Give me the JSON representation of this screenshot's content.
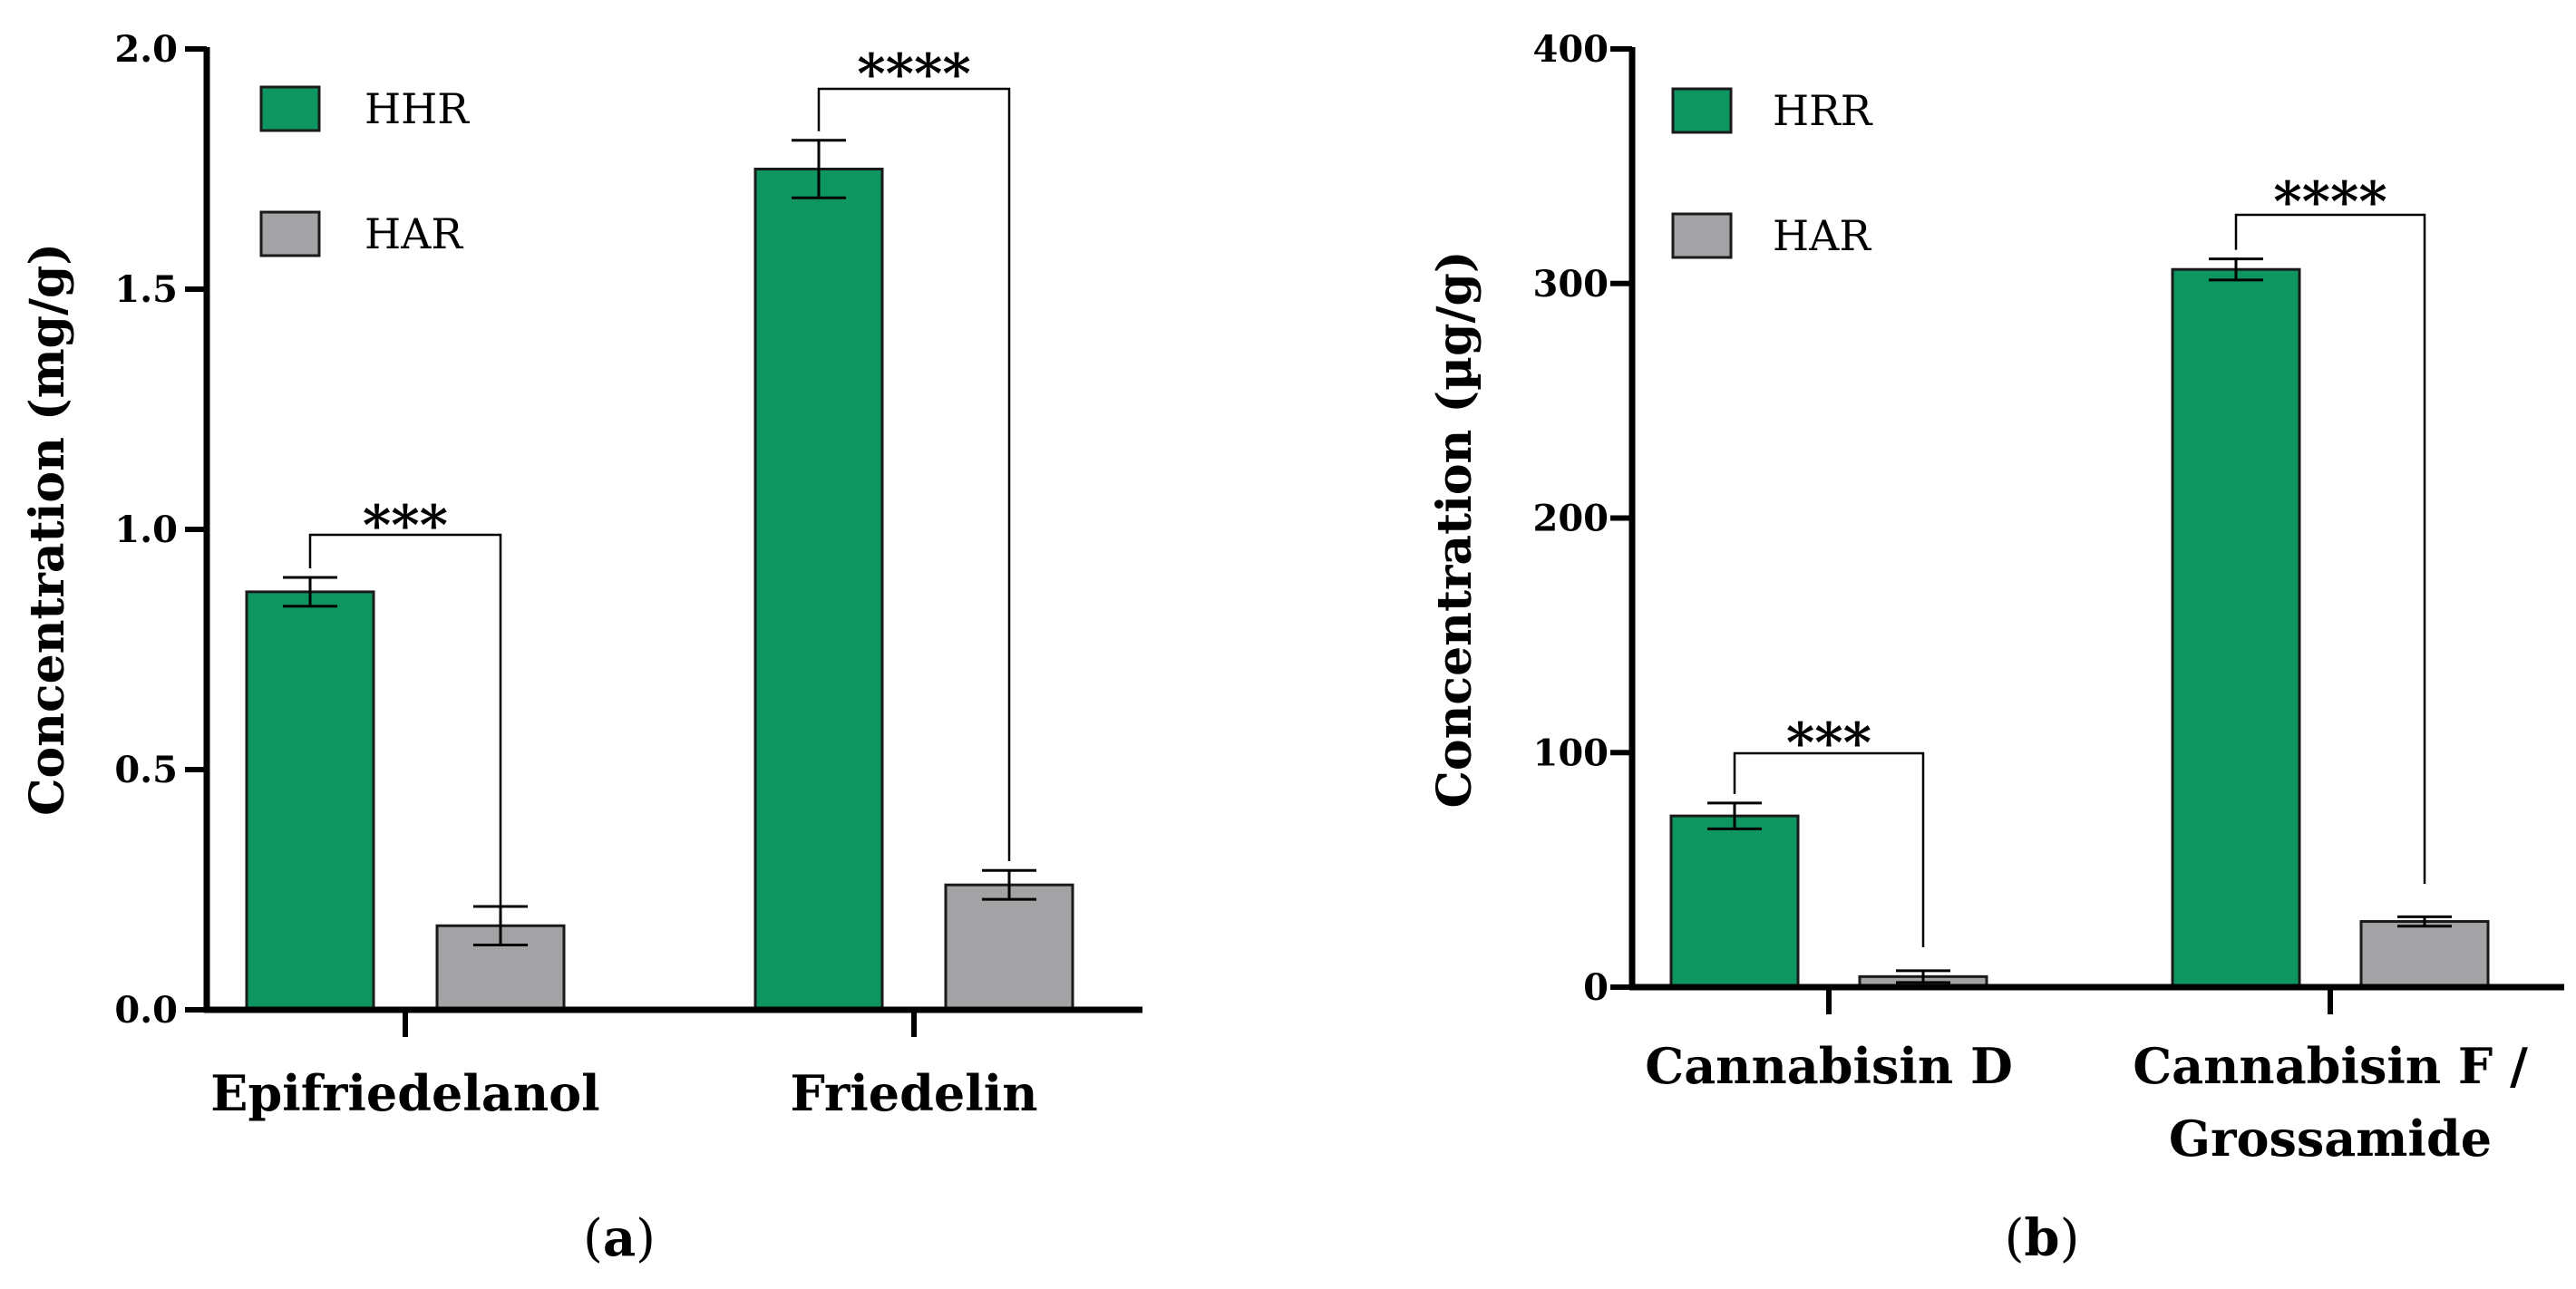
{
  "chart_data": [
    {
      "panel": "a",
      "type": "bar",
      "title": "",
      "ylabel": "Concentration (mg/g)",
      "xlabel": "",
      "ylim": [
        0,
        2.0
      ],
      "yticks": [
        "0.0",
        "0.5",
        "1.0",
        "1.5",
        "2.0"
      ],
      "ytick_values": [
        0,
        0.5,
        1.0,
        1.5,
        2.0
      ],
      "categories": [
        [
          "Epifriedelanol"
        ],
        [
          "Friedelin"
        ]
      ],
      "series": [
        {
          "name": "HHR",
          "color": "#0f9660",
          "values": [
            0.87,
            1.75
          ],
          "errors": [
            0.03,
            0.06
          ]
        },
        {
          "name": "HAR",
          "color": "#a3a3a6",
          "values": [
            0.175,
            0.26
          ],
          "errors": [
            0.04,
            0.03
          ]
        }
      ],
      "significance": [
        "***",
        "****"
      ],
      "legend_position": "top-left"
    },
    {
      "panel": "b",
      "type": "bar",
      "title": "",
      "ylabel": "Concentration (µg/g)",
      "xlabel": "",
      "ylim": [
        0,
        400
      ],
      "yticks": [
        "0",
        "100",
        "200",
        "300",
        "400"
      ],
      "ytick_values": [
        0,
        100,
        200,
        300,
        400
      ],
      "categories": [
        [
          "Cannabisin D"
        ],
        [
          "Cannabisin F /",
          "Grossamide"
        ]
      ],
      "series": [
        {
          "name": "HRR",
          "color": "#0f9660",
          "values": [
            73,
            306
          ],
          "errors": [
            5.5,
            4.5
          ]
        },
        {
          "name": "HAR",
          "color": "#a3a3a6",
          "values": [
            4.5,
            28
          ],
          "errors": [
            2.5,
            2.0
          ]
        }
      ],
      "significance": [
        "***",
        "****"
      ],
      "legend_position": "top-left"
    }
  ],
  "panel_labels": [
    {
      "open": "(",
      "letter": "a",
      "close": ")"
    },
    {
      "open": "(",
      "letter": "b",
      "close": ")"
    }
  ]
}
